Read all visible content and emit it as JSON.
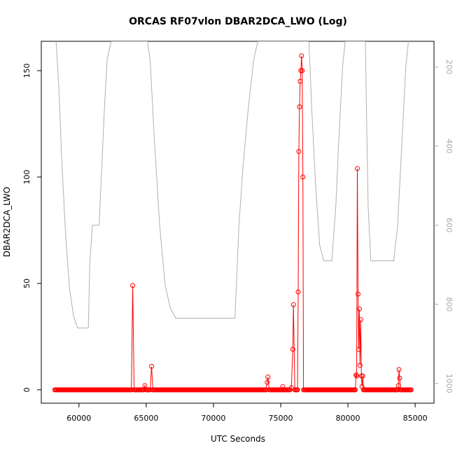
{
  "chart_data": {
    "type": "line",
    "title": "ORCAS RF07vlon DBAR2DCA_LWO (Log)",
    "xlabel": "UTC Seconds",
    "ylabel": "DBAR2DCA_LWO",
    "xlim": [
      57200,
      86400
    ],
    "ylim": [
      -6.3,
      163.8
    ],
    "y2lim": [
      1050,
      135
    ],
    "x_ticks": [
      60000,
      65000,
      70000,
      75000,
      80000,
      85000
    ],
    "y_ticks": [
      0,
      50,
      100,
      150
    ],
    "y2_ticks": [
      200,
      400,
      600,
      800,
      1000
    ],
    "grid": false,
    "colors": {
      "primary": "#ff0000",
      "secondary": "#b0b0b0"
    },
    "series": [
      {
        "axis": "left",
        "points": [
          [
            58200,
            0
          ],
          [
            63900,
            0
          ],
          [
            64000,
            49
          ],
          [
            64100,
            0
          ],
          [
            64800,
            0
          ],
          [
            64900,
            2
          ],
          [
            65000,
            0
          ],
          [
            65300,
            0
          ],
          [
            65400,
            11
          ],
          [
            65500,
            0
          ],
          [
            73900,
            0
          ],
          [
            74000,
            3.5
          ],
          [
            74050,
            6
          ],
          [
            74150,
            0
          ],
          [
            75100,
            0
          ],
          [
            75150,
            1.5
          ],
          [
            75200,
            0
          ],
          [
            75700,
            0
          ],
          [
            75800,
            1
          ],
          [
            75900,
            19
          ],
          [
            75950,
            40
          ],
          [
            76050,
            0
          ],
          [
            76250,
            0
          ],
          [
            76300,
            46
          ],
          [
            76350,
            112
          ],
          [
            76400,
            133
          ],
          [
            76450,
            145
          ],
          [
            76500,
            150
          ],
          [
            76550,
            157
          ],
          [
            76600,
            150
          ],
          [
            76650,
            100
          ],
          [
            76700,
            0
          ],
          [
            80550,
            0
          ],
          [
            80600,
            7
          ],
          [
            80650,
            6.5
          ],
          [
            80700,
            104
          ],
          [
            80750,
            45
          ],
          [
            80800,
            19
          ],
          [
            80850,
            38
          ],
          [
            80900,
            11.5
          ],
          [
            80950,
            33
          ],
          [
            81000,
            6.5
          ],
          [
            81050,
            1.5
          ],
          [
            81100,
            6.5
          ],
          [
            81150,
            0
          ],
          [
            83700,
            0
          ],
          [
            83750,
            2
          ],
          [
            83800,
            9.5
          ],
          [
            83850,
            5.5
          ],
          [
            83900,
            0
          ],
          [
            84700,
            0
          ]
        ]
      },
      {
        "axis": "right",
        "points": [
          [
            58300,
            135
          ],
          [
            58500,
            250
          ],
          [
            58700,
            420
          ],
          [
            59000,
            620
          ],
          [
            59300,
            760
          ],
          [
            59600,
            830
          ],
          [
            59900,
            860
          ],
          [
            60700,
            860
          ],
          [
            60800,
            700
          ],
          [
            61000,
            600
          ],
          [
            61200,
            600
          ],
          [
            61500,
            600
          ],
          [
            61700,
            450
          ],
          [
            61900,
            300
          ],
          [
            62100,
            180
          ],
          [
            62400,
            135
          ],
          [
            63500,
            135
          ],
          [
            63800,
            135
          ],
          [
            65100,
            135
          ],
          [
            65300,
            185
          ],
          [
            65600,
            380
          ],
          [
            66000,
            600
          ],
          [
            66400,
            750
          ],
          [
            66800,
            810
          ],
          [
            67200,
            835
          ],
          [
            68000,
            835
          ],
          [
            71000,
            835
          ],
          [
            71600,
            835
          ],
          [
            71900,
            600
          ],
          [
            72200,
            450
          ],
          [
            72600,
            300
          ],
          [
            73000,
            180
          ],
          [
            73300,
            135
          ],
          [
            75900,
            135
          ],
          [
            76200,
            135
          ],
          [
            77100,
            135
          ],
          [
            77300,
            300
          ],
          [
            77600,
            500
          ],
          [
            77900,
            650
          ],
          [
            78200,
            690
          ],
          [
            78800,
            690
          ],
          [
            79100,
            550
          ],
          [
            79300,
            400
          ],
          [
            79600,
            200
          ],
          [
            79800,
            135
          ],
          [
            81300,
            135
          ],
          [
            81400,
            350
          ],
          [
            81500,
            550
          ],
          [
            81700,
            690
          ],
          [
            83400,
            690
          ],
          [
            83700,
            600
          ],
          [
            84000,
            400
          ],
          [
            84300,
            200
          ],
          [
            84500,
            135
          ]
        ]
      }
    ]
  }
}
